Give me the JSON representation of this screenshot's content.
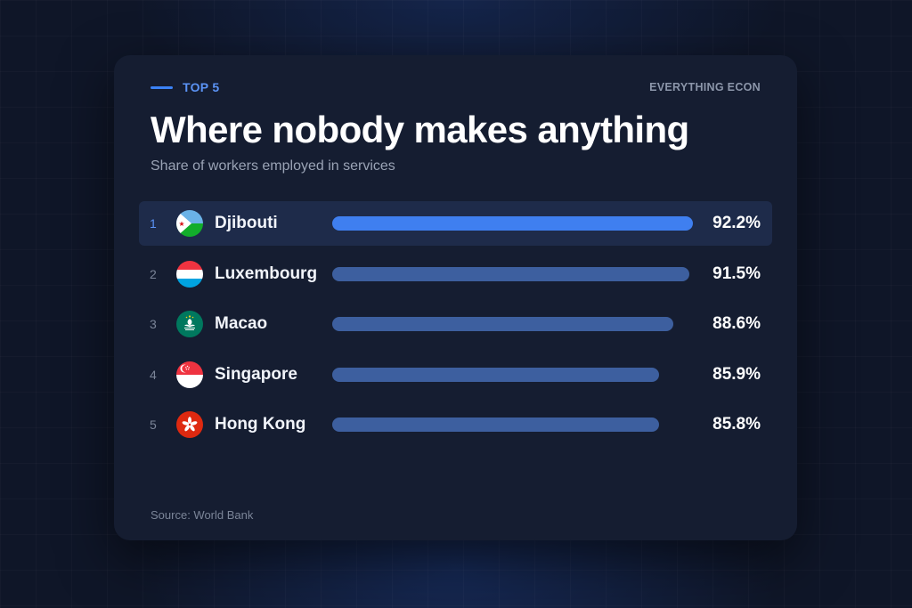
{
  "kicker": "TOP 5",
  "brand": "EVERYTHING ECON",
  "source": "Source: World Bank",
  "colors": {
    "accent": "#3f7ff0",
    "bar": "#3d5f9f",
    "card": "#151d31"
  },
  "chart_data": {
    "type": "bar",
    "orientation": "horizontal",
    "title": "Where nobody makes anything",
    "subtitle": "Share of workers employed in services",
    "categories": [
      "Djibouti",
      "Luxembourg",
      "Macao",
      "Singapore",
      "Hong Kong"
    ],
    "ranks": [
      "1",
      "2",
      "3",
      "4",
      "5"
    ],
    "values": [
      92.2,
      91.5,
      88.6,
      85.9,
      85.8
    ],
    "labels": [
      "92.2%",
      "91.5%",
      "88.6%",
      "85.9%",
      "85.8%"
    ],
    "flags": [
      "djibouti-flag-icon",
      "luxembourg-flag-icon",
      "macao-flag-icon",
      "singapore-flag-icon",
      "hong-kong-flag-icon"
    ],
    "xlim": [
      0,
      92.2
    ],
    "grid": false,
    "legend": "none"
  }
}
